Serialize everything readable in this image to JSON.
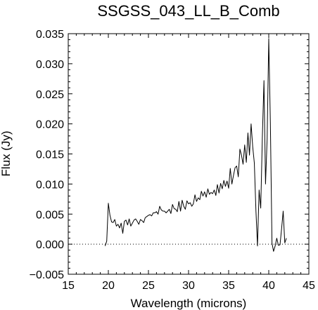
{
  "chart_data": {
    "type": "line",
    "title": "SSGSS_043_LL_B_Comb",
    "xlabel": "Wavelength (microns)",
    "ylabel": "Flux (Jy)",
    "xlim": [
      15,
      45
    ],
    "ylim": [
      -0.005,
      0.035
    ],
    "xticks": [
      15,
      20,
      25,
      30,
      35,
      40,
      45
    ],
    "xtick_labels": [
      "15",
      "20",
      "25",
      "30",
      "35",
      "40",
      "45"
    ],
    "yticks": [
      -0.005,
      0.0,
      0.005,
      0.01,
      0.015,
      0.02,
      0.025,
      0.03,
      0.035
    ],
    "ytick_labels": [
      "−0.005",
      "0.000",
      "0.005",
      "0.010",
      "0.015",
      "0.020",
      "0.025",
      "0.030",
      "0.035"
    ],
    "grid": false,
    "reference_line": {
      "y": 0.0,
      "style": "dotted"
    },
    "series": [
      {
        "x": [
          19.6,
          19.8,
          20.0,
          20.2,
          20.4,
          20.6,
          20.8,
          21.0,
          21.2,
          21.4,
          21.6,
          21.8,
          22.0,
          22.2,
          22.4,
          22.6,
          22.8,
          23.0,
          23.2,
          23.4,
          23.6,
          23.8,
          24.0,
          24.2,
          24.4,
          24.6,
          24.8,
          25.0,
          25.2,
          25.4,
          25.6,
          25.8,
          26.0,
          26.2,
          26.4,
          26.6,
          26.8,
          27.0,
          27.2,
          27.4,
          27.6,
          27.8,
          28.0,
          28.2,
          28.4,
          28.6,
          28.8,
          29.0,
          29.2,
          29.4,
          29.6,
          29.8,
          30.0,
          30.2,
          30.4,
          30.6,
          30.8,
          31.0,
          31.2,
          31.4,
          31.6,
          31.8,
          32.0,
          32.2,
          32.4,
          32.6,
          32.8,
          33.0,
          33.2,
          33.4,
          33.6,
          33.8,
          34.0,
          34.2,
          34.4,
          34.6,
          34.8,
          35.0,
          35.2,
          35.4,
          35.6,
          35.8,
          36.0,
          36.2,
          36.4,
          36.6,
          36.8,
          37.0,
          37.2,
          37.4,
          37.6,
          37.8,
          38.0,
          38.2,
          38.4,
          38.6,
          38.8,
          39.0,
          39.2,
          39.4,
          39.6,
          39.8,
          40.0,
          40.2,
          40.4,
          40.6,
          40.8,
          41.0,
          41.2,
          41.4,
          41.6,
          41.8,
          42.0,
          42.2
        ],
        "y": [
          -0.0003,
          0.0005,
          0.0068,
          0.0048,
          0.0037,
          0.0036,
          0.0041,
          0.003,
          0.0033,
          0.0027,
          0.0035,
          0.0018,
          0.0038,
          0.004,
          0.0032,
          0.0042,
          0.003,
          0.0035,
          0.004,
          0.0042,
          0.0038,
          0.0033,
          0.0041,
          0.0039,
          0.0036,
          0.0044,
          0.0046,
          0.0048,
          0.0049,
          0.0047,
          0.0052,
          0.0052,
          0.0054,
          0.005,
          0.0063,
          0.0057,
          0.0055,
          0.0055,
          0.0052,
          0.0055,
          0.0058,
          0.0051,
          0.0066,
          0.0059,
          0.0058,
          0.0054,
          0.0071,
          0.0055,
          0.0073,
          0.0063,
          0.0058,
          0.0072,
          0.0067,
          0.0069,
          0.0063,
          0.0067,
          0.0082,
          0.0071,
          0.0077,
          0.0074,
          0.0088,
          0.008,
          0.0087,
          0.0078,
          0.0092,
          0.0083,
          0.0086,
          0.0084,
          0.009,
          0.0081,
          0.0099,
          0.0085,
          0.0101,
          0.0092,
          0.0106,
          0.0096,
          0.0105,
          0.0093,
          0.0126,
          0.01,
          0.0114,
          0.0127,
          0.013,
          0.0112,
          0.0158,
          0.0148,
          0.0133,
          0.0165,
          0.0136,
          0.0185,
          0.0148,
          0.02,
          0.0162,
          0.0135,
          0.0055,
          -0.0003,
          0.009,
          0.006,
          0.0178,
          0.0272,
          0.01,
          0.0175,
          0.0342,
          0.0202,
          0.0002,
          -0.0012,
          -0.0003,
          0.001,
          -0.0002,
          -0.0001,
          0.0025,
          0.0055,
          0.0002,
          0.001
        ]
      }
    ]
  }
}
